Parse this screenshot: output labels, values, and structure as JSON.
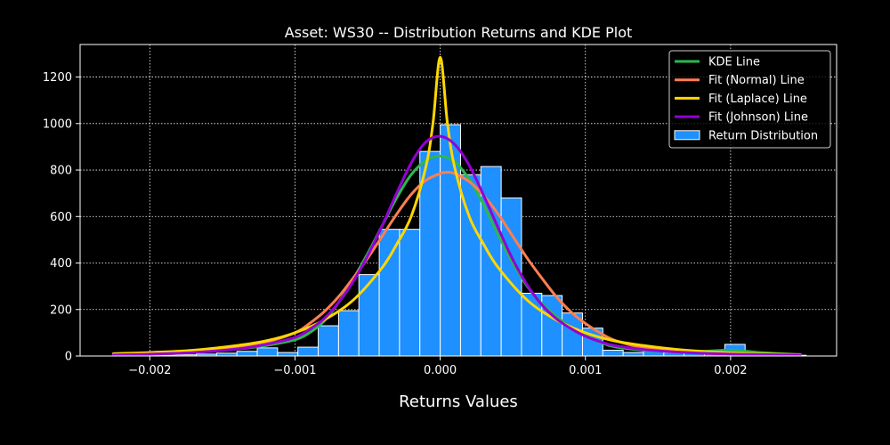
{
  "chart_data": {
    "type": "bar",
    "title": "Asset: WS30 -- Distribution Returns and KDE Plot",
    "xlabel": "Returns Values",
    "ylabel": "",
    "xlim": [
      -0.00248,
      0.00273
    ],
    "ylim": [
      0,
      1340
    ],
    "xticks": [
      -0.002,
      -0.001,
      0.0,
      0.001,
      0.002
    ],
    "xtick_labels": [
      "−0.002",
      "−0.001",
      "0.000",
      "0.001",
      "0.002"
    ],
    "yticks": [
      0,
      200,
      400,
      600,
      800,
      1000,
      1200
    ],
    "ytick_labels": [
      "0",
      "200",
      "400",
      "600",
      "800",
      "1000",
      "1200"
    ],
    "grid": true,
    "legend_position": "top-right",
    "histogram": {
      "name": "Return Distribution",
      "color": "#1e90ff",
      "edge_color": "#ffffff",
      "bins": [
        {
          "x0": -0.00224,
          "x1": -0.0021,
          "count": 3
        },
        {
          "x0": -0.0021,
          "x1": -0.00196,
          "count": 3
        },
        {
          "x0": -0.00196,
          "x1": -0.00182,
          "count": 4
        },
        {
          "x0": -0.00182,
          "x1": -0.00168,
          "count": 5
        },
        {
          "x0": -0.00168,
          "x1": -0.00154,
          "count": 8
        },
        {
          "x0": -0.00154,
          "x1": -0.0014,
          "count": 12
        },
        {
          "x0": -0.0014,
          "x1": -0.00126,
          "count": 20
        },
        {
          "x0": -0.00126,
          "x1": -0.00112,
          "count": 35
        },
        {
          "x0": -0.00112,
          "x1": -0.00098,
          "count": 15
        },
        {
          "x0": -0.00098,
          "x1": -0.00084,
          "count": 38
        },
        {
          "x0": -0.00084,
          "x1": -0.0007,
          "count": 130
        },
        {
          "x0": -0.0007,
          "x1": -0.00056,
          "count": 195
        },
        {
          "x0": -0.00056,
          "x1": -0.00042,
          "count": 350
        },
        {
          "x0": -0.00042,
          "x1": -0.00028,
          "count": 545
        },
        {
          "x0": -0.00028,
          "x1": -0.00014,
          "count": 545
        },
        {
          "x0": -0.00014,
          "x1": 0.0,
          "count": 880
        },
        {
          "x0": 0.0,
          "x1": 0.00014,
          "count": 995
        },
        {
          "x0": 0.00014,
          "x1": 0.00028,
          "count": 780
        },
        {
          "x0": 0.00028,
          "x1": 0.00042,
          "count": 815
        },
        {
          "x0": 0.00042,
          "x1": 0.00056,
          "count": 680
        },
        {
          "x0": 0.00056,
          "x1": 0.0007,
          "count": 270
        },
        {
          "x0": 0.0007,
          "x1": 0.00084,
          "count": 260
        },
        {
          "x0": 0.00084,
          "x1": 0.00098,
          "count": 185
        },
        {
          "x0": 0.00098,
          "x1": 0.00112,
          "count": 120
        },
        {
          "x0": 0.00112,
          "x1": 0.00126,
          "count": 25
        },
        {
          "x0": 0.00126,
          "x1": 0.0014,
          "count": 15
        },
        {
          "x0": 0.0014,
          "x1": 0.00154,
          "count": 35
        },
        {
          "x0": 0.00154,
          "x1": 0.00168,
          "count": 15
        },
        {
          "x0": 0.00168,
          "x1": 0.00182,
          "count": 12
        },
        {
          "x0": 0.00182,
          "x1": 0.00196,
          "count": 15
        },
        {
          "x0": 0.00196,
          "x1": 0.0021,
          "count": 50
        },
        {
          "x0": 0.0021,
          "x1": 0.00224,
          "count": 8
        },
        {
          "x0": 0.00224,
          "x1": 0.00238,
          "count": 4
        },
        {
          "x0": 0.00238,
          "x1": 0.00252,
          "count": 3
        }
      ]
    },
    "series": [
      {
        "name": "KDE Line",
        "color": "#2db84d",
        "x": [
          -0.00225,
          -0.002,
          -0.0017,
          -0.0014,
          -0.0012,
          -0.001,
          -0.0009,
          -0.0008,
          -0.0007,
          -0.0006,
          -0.0005,
          -0.0004,
          -0.0003,
          -0.0002,
          -0.0001,
          0.0,
          0.0001,
          0.0002,
          0.0003,
          0.0004,
          0.0005,
          0.0006,
          0.0007,
          0.0008,
          0.0009,
          0.001,
          0.0011,
          0.0012,
          0.0014,
          0.0016,
          0.0018,
          0.002,
          0.0022,
          0.00248
        ],
        "y": [
          5,
          8,
          15,
          30,
          45,
          70,
          100,
          150,
          230,
          330,
          440,
          560,
          680,
          780,
          840,
          860,
          835,
          760,
          650,
          520,
          400,
          300,
          225,
          170,
          125,
          90,
          60,
          40,
          25,
          20,
          20,
          25,
          15,
          5
        ]
      },
      {
        "name": "Fit (Normal) Line",
        "color": "#ff7f50",
        "x": [
          -0.00225,
          -0.002,
          -0.0017,
          -0.0014,
          -0.0012,
          -0.001,
          -0.0009,
          -0.0008,
          -0.0007,
          -0.0006,
          -0.0005,
          -0.0004,
          -0.0003,
          -0.0002,
          -0.0001,
          0.0,
          5e-05,
          0.0001,
          0.0002,
          0.0003,
          0.0004,
          0.0005,
          0.0006,
          0.0007,
          0.0008,
          0.0009,
          0.001,
          0.0011,
          0.0012,
          0.0014,
          0.0016,
          0.0018,
          0.002,
          0.0022,
          0.00248
        ],
        "y": [
          5,
          10,
          20,
          40,
          60,
          100,
          140,
          190,
          255,
          335,
          420,
          515,
          610,
          695,
          755,
          785,
          790,
          785,
          750,
          690,
          610,
          515,
          420,
          335,
          255,
          190,
          140,
          100,
          68,
          35,
          20,
          12,
          8,
          6,
          4
        ]
      },
      {
        "name": "Fit (Laplace) Line",
        "color": "#ffd700",
        "x": [
          -0.00225,
          -0.002,
          -0.0017,
          -0.0014,
          -0.0012,
          -0.001,
          -0.0008,
          -0.0006,
          -0.0004,
          -0.0003,
          -0.0002,
          -0.0001,
          -5e-05,
          0.0,
          5e-05,
          0.0001,
          0.0002,
          0.0003,
          0.0004,
          0.0006,
          0.0008,
          0.001,
          0.0012,
          0.0014,
          0.0016,
          0.0018,
          0.002,
          0.0022,
          0.00248
        ],
        "y": [
          10,
          15,
          25,
          45,
          65,
          100,
          155,
          240,
          380,
          480,
          600,
          810,
          1000,
          1285,
          1000,
          810,
          600,
          480,
          380,
          240,
          155,
          100,
          65,
          45,
          30,
          20,
          13,
          9,
          6
        ]
      },
      {
        "name": "Fit (Johnson) Line",
        "color": "#9400d3",
        "x": [
          -0.00225,
          -0.002,
          -0.0017,
          -0.0014,
          -0.0012,
          -0.001,
          -0.0009,
          -0.0008,
          -0.0007,
          -0.0006,
          -0.0005,
          -0.0004,
          -0.0003,
          -0.0002,
          -0.0001,
          0.0,
          0.0001,
          0.0002,
          0.0003,
          0.0004,
          0.0005,
          0.0006,
          0.0007,
          0.0008,
          0.0009,
          0.001,
          0.0011,
          0.0012,
          0.0014,
          0.0016,
          0.0018,
          0.002,
          0.0022,
          0.00248
        ],
        "y": [
          5,
          8,
          15,
          30,
          50,
          80,
          115,
          160,
          230,
          320,
          430,
          560,
          700,
          830,
          920,
          945,
          910,
          820,
          690,
          550,
          415,
          305,
          220,
          160,
          118,
          85,
          62,
          45,
          28,
          18,
          12,
          8,
          6,
          4
        ]
      }
    ]
  }
}
